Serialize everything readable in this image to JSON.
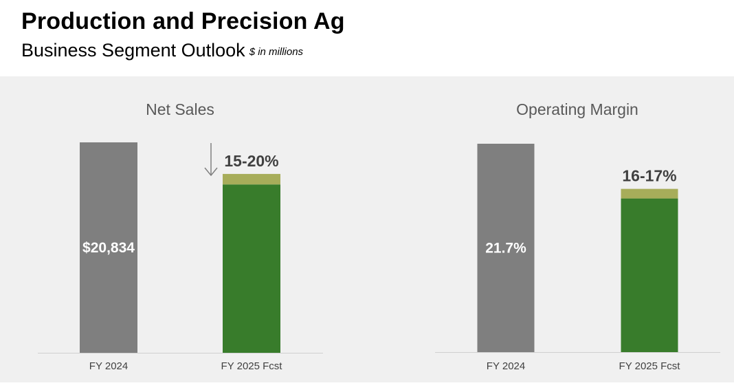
{
  "header": {
    "title": "Production and Precision Ag",
    "subtitle": "Business Segment Outlook",
    "units": "$ in millions"
  },
  "colors": {
    "gray_bar": "#7f7f7f",
    "green_bar": "#387c2b",
    "olive_range": "#a7ad5a",
    "panel_bg": "#f0f0f0"
  },
  "chart_data": [
    {
      "type": "bar",
      "title": "Net Sales",
      "categories": [
        "FY 2024",
        "FY 2025 Fcst"
      ],
      "values": [
        20834,
        17708
      ],
      "range_band": [
        16667,
        17708
      ],
      "data_labels": [
        "$20,834",
        "15-20%"
      ],
      "change_indicator": "down-arrow",
      "ylim": [
        0,
        20834
      ]
    },
    {
      "type": "bar",
      "title": "Operating Margin",
      "categories": [
        "FY 2024",
        "FY 2025 Fcst"
      ],
      "values": [
        21.7,
        17
      ],
      "range_band": [
        16,
        17
      ],
      "data_labels": [
        "21.7%",
        "16-17%"
      ],
      "ylim": [
        0,
        21.7
      ]
    }
  ]
}
